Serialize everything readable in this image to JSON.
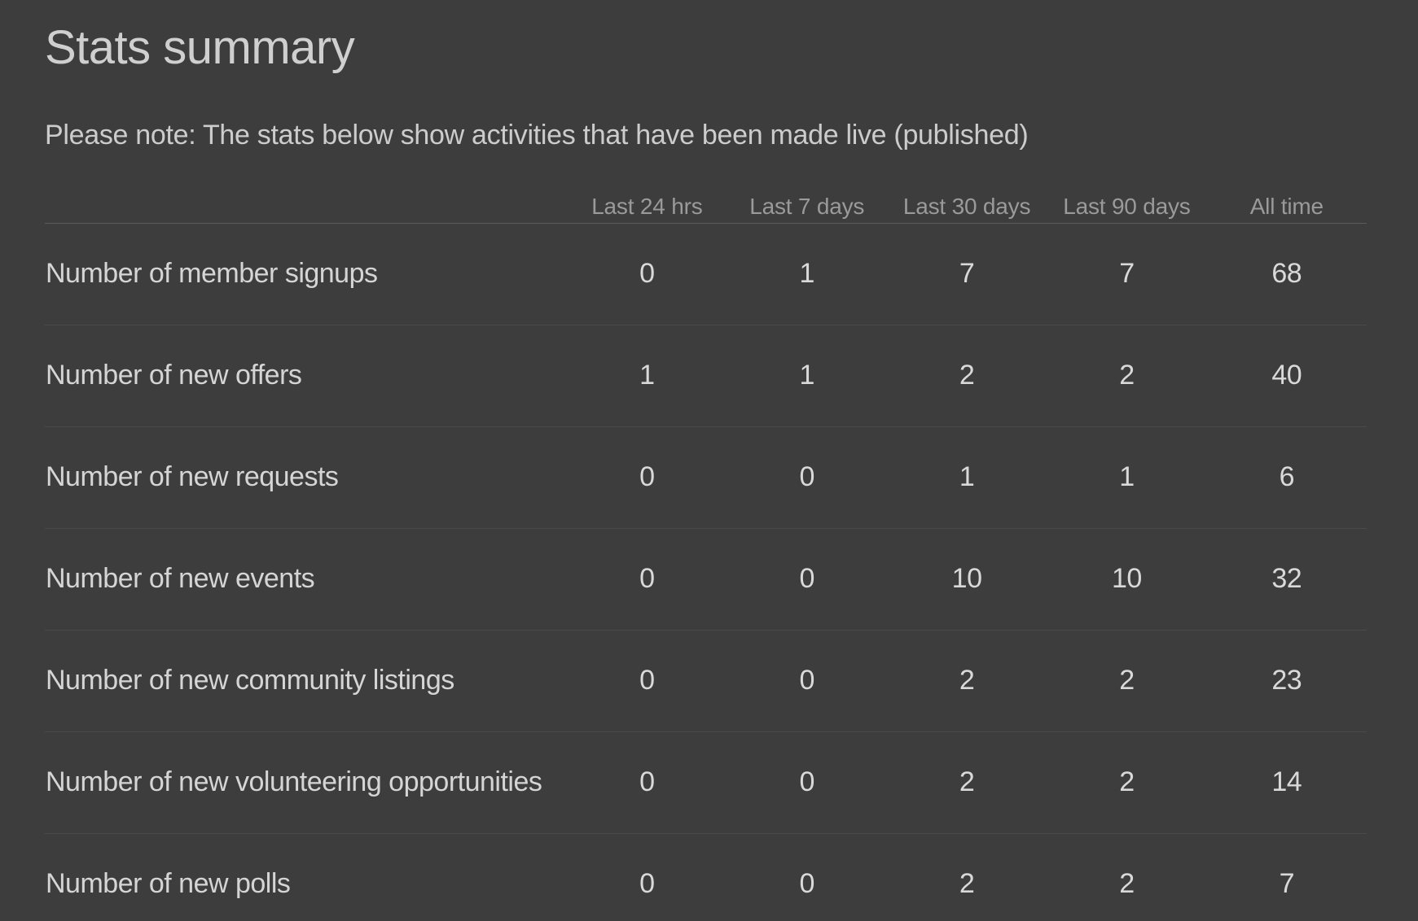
{
  "page": {
    "title": "Stats summary",
    "note": "Please note: The stats below show activities that have been made live (published)"
  },
  "table": {
    "columns": [
      "Last 24 hrs",
      "Last 7 days",
      "Last 30 days",
      "Last 90 days",
      "All time"
    ],
    "rows": [
      {
        "label": "Number of member signups",
        "values": [
          "0",
          "1",
          "7",
          "7",
          "68"
        ]
      },
      {
        "label": "Number of new offers",
        "values": [
          "1",
          "1",
          "2",
          "2",
          "40"
        ]
      },
      {
        "label": "Number of new requests",
        "values": [
          "0",
          "0",
          "1",
          "1",
          "6"
        ]
      },
      {
        "label": "Number of new events",
        "values": [
          "0",
          "0",
          "10",
          "10",
          "32"
        ]
      },
      {
        "label": "Number of new community listings",
        "values": [
          "0",
          "0",
          "2",
          "2",
          "23"
        ]
      },
      {
        "label": "Number of new volunteering opportunities",
        "values": [
          "0",
          "0",
          "2",
          "2",
          "14"
        ]
      },
      {
        "label": "Number of new polls",
        "values": [
          "0",
          "0",
          "2",
          "2",
          "7"
        ]
      }
    ]
  },
  "colors": {
    "background": "#3d3d3d",
    "title_text": "#cfcfcf",
    "note_text": "#cccccc",
    "header_text": "#9a9a9a",
    "label_text": "#d5d5d5",
    "value_text": "#d9d9d9",
    "header_divider": "#5a5a5a",
    "row_divider": "#4a4a4a"
  }
}
